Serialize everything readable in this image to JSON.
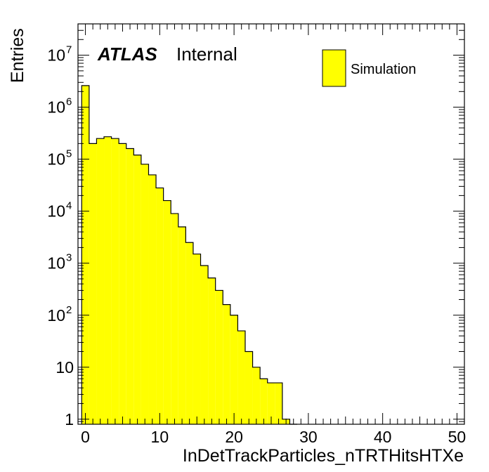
{
  "chart_data": {
    "type": "bar",
    "histogram": true,
    "x_label": "InDetTrackParticles_nTRTHitsHTXe",
    "y_label": "Entries",
    "xlim": [
      -1,
      51
    ],
    "ylim": [
      0.8,
      40000000
    ],
    "y_scale": "log",
    "x_ticks": [
      0,
      10,
      20,
      30,
      40,
      50
    ],
    "x_tick_labels": [
      "0",
      "10",
      "20",
      "30",
      "40",
      "50"
    ],
    "y_ticks": [
      1,
      10,
      100,
      1000,
      10000,
      100000,
      1000000,
      10000000
    ],
    "y_tick_labels": [
      {
        "base": "1",
        "exp": ""
      },
      {
        "base": "10",
        "exp": ""
      },
      {
        "base": "10",
        "exp": "2"
      },
      {
        "base": "10",
        "exp": "3"
      },
      {
        "base": "10",
        "exp": "4"
      },
      {
        "base": "10",
        "exp": "5"
      },
      {
        "base": "10",
        "exp": "6"
      },
      {
        "base": "10",
        "exp": "7"
      }
    ],
    "bin_width": 1,
    "bin_low_edges": [
      -0.5,
      0.5,
      1.5,
      2.5,
      3.5,
      4.5,
      5.5,
      6.5,
      7.5,
      8.5,
      9.5,
      10.5,
      11.5,
      12.5,
      13.5,
      14.5,
      15.5,
      16.5,
      17.5,
      18.5,
      19.5,
      20.5,
      21.5,
      22.5,
      23.5,
      24.5,
      25.5,
      26.5,
      27.5
    ],
    "values": [
      2600000,
      200000,
      250000,
      270000,
      250000,
      200000,
      160000,
      120000,
      80000,
      50000,
      28000,
      16000,
      9000,
      5000,
      2500,
      1500,
      900,
      520,
      300,
      160,
      100,
      50,
      20,
      10,
      6,
      5,
      5,
      1,
      0
    ],
    "fill_color": "#ffff00",
    "line_color": "#000000",
    "legend": [
      {
        "name": "Simulation",
        "color": "#ffff00"
      }
    ],
    "legend_position": "top-right",
    "grid": false
  },
  "annotation": {
    "atlas": "ATLAS",
    "status": "Internal"
  }
}
